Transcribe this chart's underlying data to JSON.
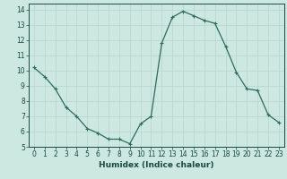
{
  "x": [
    0,
    1,
    2,
    3,
    4,
    5,
    6,
    7,
    8,
    9,
    10,
    11,
    12,
    13,
    14,
    15,
    16,
    17,
    18,
    19,
    20,
    21,
    22,
    23
  ],
  "y": [
    10.2,
    9.6,
    8.8,
    7.6,
    7.0,
    6.2,
    5.9,
    5.5,
    5.5,
    5.2,
    6.5,
    7.0,
    11.8,
    13.5,
    13.9,
    13.6,
    13.3,
    13.1,
    11.6,
    9.9,
    8.8,
    8.7,
    7.1,
    6.6
  ],
  "line_color": "#2e6b5e",
  "marker": "+",
  "marker_size": 3,
  "marker_lw": 0.8,
  "bg_color": "#cce8e0",
  "grid_color": "#b8d8d0",
  "xlabel": "Humidex (Indice chaleur)",
  "xlim": [
    -0.5,
    23.5
  ],
  "ylim": [
    5,
    14.4
  ],
  "yticks": [
    5,
    6,
    7,
    8,
    9,
    10,
    11,
    12,
    13,
    14
  ],
  "xticks": [
    0,
    1,
    2,
    3,
    4,
    5,
    6,
    7,
    8,
    9,
    10,
    11,
    12,
    13,
    14,
    15,
    16,
    17,
    18,
    19,
    20,
    21,
    22,
    23
  ],
  "label_color": "#1a4a3e",
  "tick_color": "#1a4a3e",
  "spine_color": "#1a4a3e",
  "font_size_label": 6.5,
  "font_size_tick": 5.5,
  "line_width": 0.9
}
